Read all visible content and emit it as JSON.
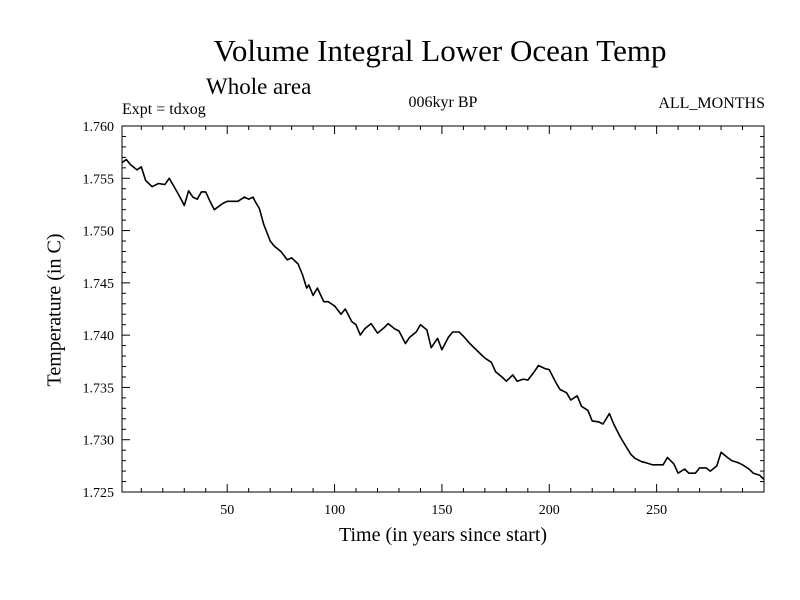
{
  "chart_data": {
    "type": "line",
    "title": "Volume Integral Lower Ocean Temp",
    "subtitle": "Whole area",
    "experiment": "Expt = tdxog",
    "period": "006kyr BP",
    "months": "ALL_MONTHS",
    "xlabel": "Time (in years since start)",
    "ylabel": "Temperature (in C)",
    "xlim": [
      1,
      300
    ],
    "ylim": [
      1.725,
      1.76
    ],
    "xticks": [
      50,
      100,
      150,
      200,
      250
    ],
    "yticks": [
      "1.725",
      "1.730",
      "1.735",
      "1.740",
      "1.745",
      "1.750",
      "1.755",
      "1.760"
    ],
    "grid": false,
    "series": [
      {
        "color": "#000000",
        "x": [
          1,
          3,
          5,
          8,
          10,
          12,
          15,
          18,
          21,
          23,
          25,
          28,
          30,
          32,
          34,
          36,
          38,
          40,
          42,
          44,
          46,
          48,
          50,
          52,
          55,
          58,
          60,
          62,
          63,
          65,
          67,
          70,
          72,
          75,
          78,
          80,
          83,
          85,
          87,
          88,
          90,
          92,
          95,
          97,
          100,
          103,
          105,
          108,
          110,
          112,
          114,
          117,
          120,
          123,
          125,
          128,
          130,
          133,
          135,
          138,
          140,
          143,
          145,
          148,
          150,
          153,
          155,
          158,
          160,
          163,
          165,
          168,
          170,
          173,
          175,
          178,
          180,
          183,
          185,
          188,
          190,
          193,
          195,
          198,
          200,
          203,
          205,
          208,
          210,
          213,
          215,
          218,
          220,
          223,
          225,
          228,
          230,
          233,
          235,
          238,
          240,
          243,
          245,
          248,
          250,
          253,
          255,
          258,
          260,
          263,
          265,
          268,
          270,
          273,
          275,
          278,
          280,
          283,
          285,
          288,
          290,
          293,
          295,
          298,
          300
        ],
        "y": [
          1.7565,
          1.7568,
          1.7563,
          1.7558,
          1.7561,
          1.7548,
          1.7542,
          1.7545,
          1.7544,
          1.755,
          1.7543,
          1.7532,
          1.7524,
          1.7538,
          1.7532,
          1.753,
          1.7537,
          1.7537,
          1.7528,
          1.752,
          1.7523,
          1.7526,
          1.7528,
          1.7528,
          1.7528,
          1.7532,
          1.753,
          1.7532,
          1.7528,
          1.7521,
          1.7506,
          1.749,
          1.7485,
          1.748,
          1.7472,
          1.7474,
          1.7468,
          1.7458,
          1.7445,
          1.7448,
          1.7438,
          1.7445,
          1.7432,
          1.7432,
          1.7428,
          1.742,
          1.7425,
          1.7413,
          1.741,
          1.74,
          1.7406,
          1.7411,
          1.7402,
          1.7407,
          1.7411,
          1.7406,
          1.7404,
          1.7392,
          1.7398,
          1.7403,
          1.741,
          1.7405,
          1.7388,
          1.7397,
          1.7386,
          1.7398,
          1.7403,
          1.7403,
          1.7399,
          1.7392,
          1.7388,
          1.7382,
          1.7378,
          1.7374,
          1.7365,
          1.736,
          1.7356,
          1.7362,
          1.7356,
          1.7358,
          1.7357,
          1.7365,
          1.7371,
          1.7368,
          1.7367,
          1.7355,
          1.7348,
          1.7345,
          1.7338,
          1.7342,
          1.7332,
          1.7328,
          1.7318,
          1.7317,
          1.7315,
          1.7325,
          1.7315,
          1.7303,
          1.7296,
          1.7286,
          1.7282,
          1.7279,
          1.7278,
          1.7276,
          1.7276,
          1.7276,
          1.7283,
          1.7277,
          1.7268,
          1.7272,
          1.7268,
          1.7268,
          1.7273,
          1.7273,
          1.727,
          1.7275,
          1.7288,
          1.7283,
          1.728,
          1.7278,
          1.7276,
          1.7272,
          1.7268,
          1.7266,
          1.7262
        ]
      }
    ]
  }
}
